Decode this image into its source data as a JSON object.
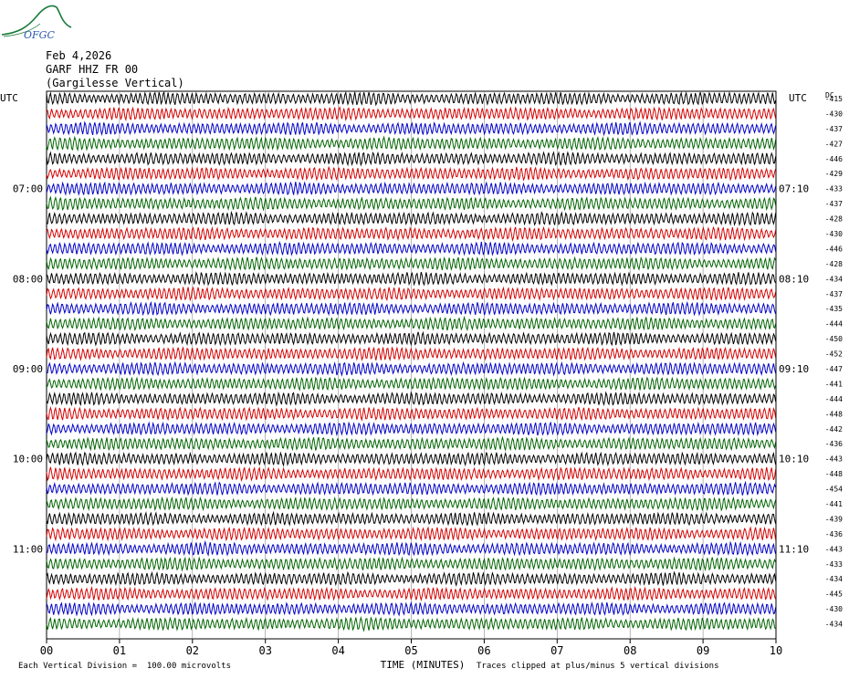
{
  "logo": {
    "text": "OFGC",
    "color": "#1a7a3a",
    "text_color": "#2a58b0"
  },
  "header": {
    "date": "Feb 4,2026",
    "station": "GARF HHZ FR 00",
    "location": "(Gargilesse Vertical)"
  },
  "chart_data": {
    "type": "line",
    "title": "GARF HHZ FR 00",
    "xlabel": "TIME (MINUTES)",
    "x_ticks": [
      "00",
      "01",
      "02",
      "03",
      "04",
      "05",
      "06",
      "07",
      "08",
      "09",
      "10"
    ],
    "xlim": [
      0,
      10
    ],
    "left_axis_label": "UTC",
    "right_axis_label": "UTC",
    "dc_label": "DC",
    "left_time_labels": [
      {
        "row": 6,
        "label": "07:00"
      },
      {
        "row": 12,
        "label": "08:00"
      },
      {
        "row": 18,
        "label": "09:00"
      },
      {
        "row": 24,
        "label": "10:00"
      },
      {
        "row": 30,
        "label": "11:00"
      }
    ],
    "right_time_labels": [
      {
        "row": 6,
        "label": "07:10"
      },
      {
        "row": 12,
        "label": "08:10"
      },
      {
        "row": 18,
        "label": "09:10"
      },
      {
        "row": 24,
        "label": "10:10"
      },
      {
        "row": 30,
        "label": "11:10"
      }
    ],
    "trace_colors": [
      "#000000",
      "#d40000",
      "#0000c8",
      "#006400"
    ],
    "dc_offsets": [
      "-415",
      "-430",
      "-437",
      "-427",
      "-446",
      "-429",
      "-433",
      "-437",
      "-428",
      "-430",
      "-446",
      "-428",
      "-434",
      "-437",
      "-435",
      "-444",
      "-450",
      "-452",
      "-447",
      "-441",
      "-444",
      "-448",
      "-442",
      "-436",
      "-443",
      "-448",
      "-454",
      "-441",
      "-439",
      "-436",
      "-443",
      "-433",
      "-434",
      "-445",
      "-430",
      "-434"
    ],
    "footer_left": "Each Vertical Division =  100.00 microvolts",
    "footer_right": "Traces clipped at plus/minus 5 vertical divisions"
  }
}
